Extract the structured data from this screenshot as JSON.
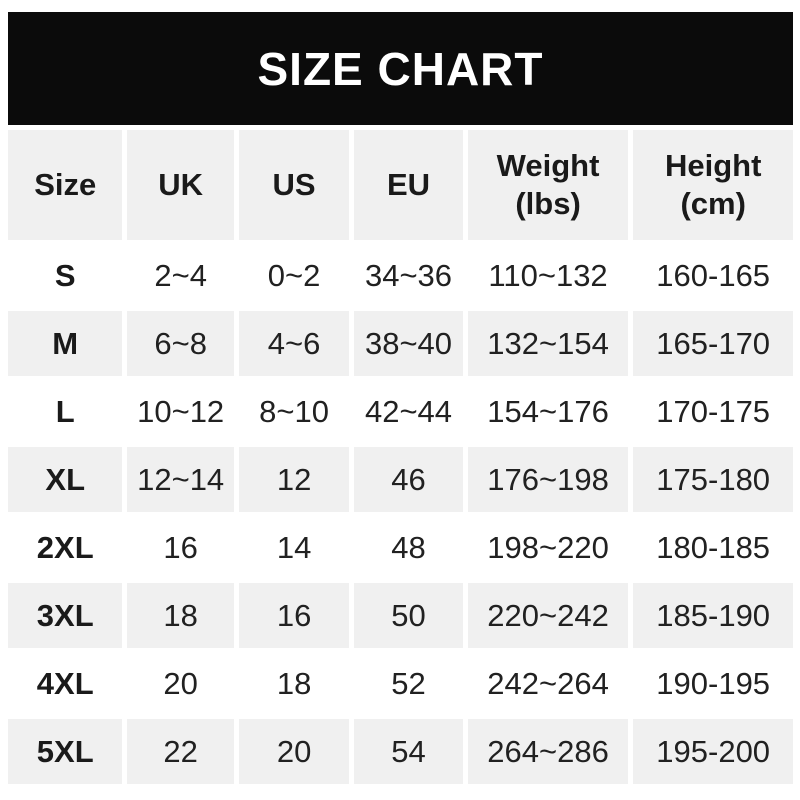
{
  "title": "SIZE CHART",
  "colors": {
    "banner_bg": "#0b0b0b",
    "banner_text": "#ffffff",
    "stripe_bg": "#f0f0f0",
    "row_bg": "#ffffff",
    "text": "#212121"
  },
  "chart_data": {
    "type": "table",
    "title": "SIZE CHART",
    "columns": [
      "Size",
      "UK",
      "US",
      "EU",
      "Weight (lbs)",
      "Height (cm)"
    ],
    "header": {
      "size": "Size",
      "uk": "UK",
      "us": "US",
      "eu": "EU",
      "weight_line1": "Weight",
      "weight_line2": "(lbs)",
      "height_line1": "Height",
      "height_line2": "(cm)"
    },
    "rows": [
      {
        "size": "S",
        "uk": "2~4",
        "us": "0~2",
        "eu": "34~36",
        "weight_lbs": "110~132",
        "height_cm": "160-165"
      },
      {
        "size": "M",
        "uk": "6~8",
        "us": "4~6",
        "eu": "38~40",
        "weight_lbs": "132~154",
        "height_cm": "165-170"
      },
      {
        "size": "L",
        "uk": "10~12",
        "us": "8~10",
        "eu": "42~44",
        "weight_lbs": "154~176",
        "height_cm": "170-175"
      },
      {
        "size": "XL",
        "uk": "12~14",
        "us": "12",
        "eu": "46",
        "weight_lbs": "176~198",
        "height_cm": "175-180"
      },
      {
        "size": "2XL",
        "uk": "16",
        "us": "14",
        "eu": "48",
        "weight_lbs": "198~220",
        "height_cm": "180-185"
      },
      {
        "size": "3XL",
        "uk": "18",
        "us": "16",
        "eu": "50",
        "weight_lbs": "220~242",
        "height_cm": "185-190"
      },
      {
        "size": "4XL",
        "uk": "20",
        "us": "18",
        "eu": "52",
        "weight_lbs": "242~264",
        "height_cm": "190-195"
      },
      {
        "size": "5XL",
        "uk": "22",
        "us": "20",
        "eu": "54",
        "weight_lbs": "264~286",
        "height_cm": "195-200"
      }
    ]
  }
}
